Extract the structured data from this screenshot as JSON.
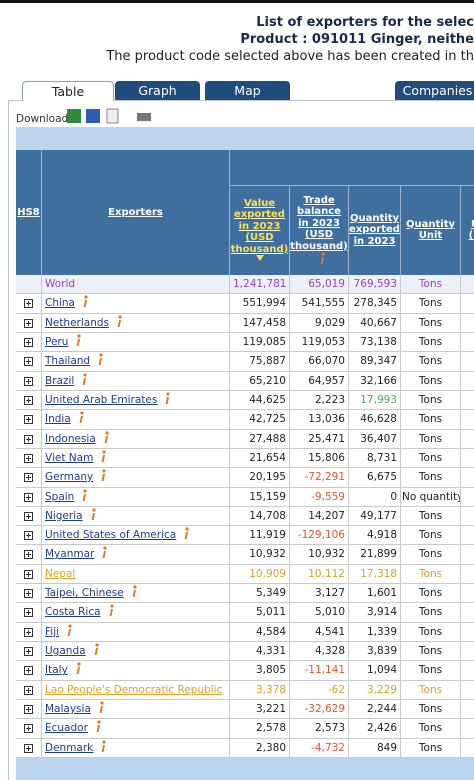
{
  "header": {
    "title": "List of exporters for the selec",
    "product": "Product : 091011 Ginger, neithe",
    "note": "The product code selected above has been created in th"
  },
  "tabs": [
    "Table",
    "Graph",
    "Map",
    "Companies"
  ],
  "download_label": "Download:",
  "table": {
    "columns": [
      "HS8",
      "Exporters",
      "Value exported in 2023 (USD thousand)",
      "Trade balance in 2023 (USD thousand)",
      "Quantity exported in 2023",
      "Quantity Unit",
      "U (U"
    ],
    "rows": [
      {
        "cells": [
          "World",
          "1,241,781",
          "65,019",
          "769,593",
          "Tons"
        ],
        "color": "#a03cc0"
      },
      {
        "cells": [
          "China",
          "551,994",
          "541,555",
          "278,345",
          "Tons"
        ],
        "info": true
      },
      {
        "cells": [
          "Netherlands",
          "147,458",
          "9,029",
          "40,667",
          "Tons"
        ],
        "info": true
      },
      {
        "cells": [
          "Peru",
          "119,085",
          "119,053",
          "73,138",
          "Tons"
        ],
        "info": true
      },
      {
        "cells": [
          "Thailand",
          "75,887",
          "66,070",
          "89,347",
          "Tons"
        ],
        "info": true
      },
      {
        "cells": [
          "Brazil",
          "65,210",
          "64,957",
          "32,166",
          "Tons"
        ],
        "info": true
      },
      {
        "cells": [
          "United Arab Emirates",
          "44,625",
          "2,223",
          "17,993",
          "Tons"
        ],
        "info": true,
        "quantity_color": "#3cb44b"
      },
      {
        "cells": [
          "India",
          "42,725",
          "13,036",
          "46,628",
          "Tons"
        ],
        "info": true
      },
      {
        "cells": [
          "Indonesia",
          "27,488",
          "25,471",
          "36,407",
          "Tons"
        ],
        "info": true
      },
      {
        "cells": [
          "Viet Nam",
          "21,654",
          "15,806",
          "8,731",
          "Tons"
        ],
        "info": true
      },
      {
        "cells": [
          "Germany",
          "20,195",
          "-72,291",
          "6,675",
          "Tons"
        ],
        "info": true
      },
      {
        "cells": [
          "Spain",
          "15,159",
          "-9,559",
          "0",
          "No quantity"
        ],
        "info": true
      },
      {
        "cells": [
          "Nigeria",
          "14,708",
          "14,207",
          "49,177",
          "Tons"
        ],
        "info": true
      },
      {
        "cells": [
          "United States of America",
          "11,919",
          "-129,106",
          "4,918",
          "Tons"
        ],
        "info": true
      },
      {
        "cells": [
          "Myanmar",
          "10,932",
          "10,932",
          "21,899",
          "Tons"
        ],
        "info": true
      },
      {
        "cells": [
          "Nepal",
          "10,909",
          "10,112",
          "17,318",
          "Tons"
        ],
        "color": "#e0a020"
      },
      {
        "cells": [
          "Taipei, Chinese",
          "5,349",
          "3,127",
          "1,601",
          "Tons"
        ],
        "info": true
      },
      {
        "cells": [
          "Costa Rica",
          "5,011",
          "5,010",
          "3,914",
          "Tons"
        ],
        "info": true
      },
      {
        "cells": [
          "Fiji",
          "4,584",
          "4,541",
          "1,339",
          "Tons"
        ],
        "info": true
      },
      {
        "cells": [
          "Uganda",
          "4,331",
          "4,328",
          "3,839",
          "Tons"
        ],
        "info": true
      },
      {
        "cells": [
          "Italy",
          "3,805",
          "-11,141",
          "1,094",
          "Tons"
        ],
        "info": true
      },
      {
        "cells": [
          "Lao People's Democratic Republic",
          "3,378",
          "-62",
          "3,229",
          "Tons"
        ],
        "color": "#e0a020"
      },
      {
        "cells": [
          "Malaysia",
          "3,221",
          "-32,629",
          "2,244",
          "Tons"
        ],
        "info": true
      },
      {
        "cells": [
          "Ecuador",
          "2,578",
          "2,573",
          "2,426",
          "Tons"
        ],
        "info": true
      },
      {
        "cells": [
          "Denmark",
          "2,380",
          "-4,732",
          "849",
          "Tons"
        ],
        "info": true
      }
    ]
  }
}
